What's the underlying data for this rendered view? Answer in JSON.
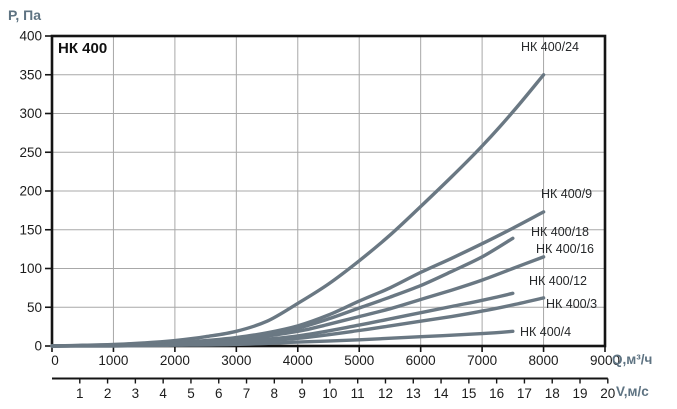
{
  "chart_data": {
    "type": "line",
    "title": "НК 400",
    "y_axis": {
      "label": "Р, Па",
      "min": 0,
      "max": 400,
      "tick_step": 50,
      "ticks": [
        0,
        50,
        100,
        150,
        200,
        250,
        300,
        350,
        400
      ]
    },
    "x_axis_q": {
      "label": "Q,м³/ч",
      "min": 0,
      "max": 9000,
      "tick_step": 1000,
      "ticks": [
        0,
        1000,
        2000,
        3000,
        4000,
        5000,
        6000,
        7000,
        8000,
        9000
      ]
    },
    "x_axis_v": {
      "label": "V,м/с",
      "min": 0,
      "max": 20,
      "ticks": [
        1,
        2,
        3,
        4,
        5,
        6,
        7,
        8,
        9,
        10,
        11,
        12,
        13,
        14,
        15,
        16,
        17,
        18,
        19,
        20
      ]
    },
    "grid": true,
    "legend_position": "inline-right",
    "series": [
      {
        "name": "НК 400/24",
        "label_pos": {
          "x": 521,
          "y": 51
        },
        "points": [
          [
            0,
            0
          ],
          [
            500,
            1
          ],
          [
            1000,
            2
          ],
          [
            1500,
            4
          ],
          [
            2000,
            7
          ],
          [
            2500,
            12
          ],
          [
            3000,
            19
          ],
          [
            3500,
            32
          ],
          [
            4000,
            55
          ],
          [
            4500,
            80
          ],
          [
            5000,
            110
          ],
          [
            5500,
            143
          ],
          [
            6000,
            180
          ],
          [
            6500,
            218
          ],
          [
            7000,
            258
          ],
          [
            7500,
            302
          ],
          [
            8000,
            350
          ]
        ]
      },
      {
        "name": "НК 400/9",
        "label_pos": {
          "x": 541,
          "y": 198
        },
        "points": [
          [
            0,
            0
          ],
          [
            1000,
            1
          ],
          [
            2000,
            4
          ],
          [
            2500,
            7
          ],
          [
            3000,
            11
          ],
          [
            3500,
            17
          ],
          [
            4000,
            26
          ],
          [
            4500,
            40
          ],
          [
            5000,
            58
          ],
          [
            5500,
            75
          ],
          [
            6000,
            95
          ],
          [
            6500,
            113
          ],
          [
            7000,
            132
          ],
          [
            7500,
            152
          ],
          [
            8000,
            173
          ]
        ]
      },
      {
        "name": "НК 400/18",
        "label_pos": {
          "x": 531,
          "y": 236
        },
        "points": [
          [
            0,
            0
          ],
          [
            1000,
            1
          ],
          [
            2000,
            4
          ],
          [
            3000,
            10
          ],
          [
            3500,
            15
          ],
          [
            4000,
            23
          ],
          [
            4500,
            35
          ],
          [
            5000,
            49
          ],
          [
            5500,
            63
          ],
          [
            6000,
            78
          ],
          [
            6500,
            96
          ],
          [
            7000,
            115
          ],
          [
            7500,
            139
          ]
        ]
      },
      {
        "name": "НК 400/16",
        "label_pos": {
          "x": 536,
          "y": 253
        },
        "points": [
          [
            0,
            0
          ],
          [
            1000,
            1
          ],
          [
            2000,
            3
          ],
          [
            3000,
            8
          ],
          [
            4000,
            19
          ],
          [
            4500,
            28
          ],
          [
            5000,
            38
          ],
          [
            5500,
            48
          ],
          [
            6000,
            60
          ],
          [
            6500,
            72
          ],
          [
            7000,
            85
          ],
          [
            7500,
            100
          ],
          [
            8000,
            115
          ]
        ]
      },
      {
        "name": "НК 400/12",
        "label_pos": {
          "x": 529,
          "y": 285
        },
        "points": [
          [
            0,
            0
          ],
          [
            1000,
            1
          ],
          [
            2000,
            3
          ],
          [
            3000,
            6
          ],
          [
            4000,
            13
          ],
          [
            5000,
            27
          ],
          [
            5500,
            35
          ],
          [
            6000,
            43
          ],
          [
            6500,
            51
          ],
          [
            7000,
            59
          ],
          [
            7500,
            68
          ]
        ]
      },
      {
        "name": "НК 400/3",
        "label_pos": {
          "x": 546,
          "y": 308
        },
        "points": [
          [
            0,
            0
          ],
          [
            1000,
            1
          ],
          [
            2000,
            2
          ],
          [
            3000,
            5
          ],
          [
            4000,
            10
          ],
          [
            5000,
            20
          ],
          [
            5500,
            26
          ],
          [
            6000,
            32
          ],
          [
            6500,
            38
          ],
          [
            7000,
            45
          ],
          [
            7500,
            53
          ],
          [
            8000,
            62
          ]
        ]
      },
      {
        "name": "НК 400/4",
        "label_pos": {
          "x": 520,
          "y": 336
        },
        "points": [
          [
            0,
            0
          ],
          [
            1000,
            0
          ],
          [
            2000,
            1
          ],
          [
            3000,
            2
          ],
          [
            4000,
            5
          ],
          [
            5000,
            8
          ],
          [
            6000,
            12
          ],
          [
            7000,
            16
          ],
          [
            7500,
            19
          ]
        ]
      }
    ],
    "colors": {
      "curve": "#6a7883",
      "grid": "#a8a8a8",
      "frame": "#141414",
      "axis_unit_label": "#5e7382",
      "tick_text": "#1c1c1c",
      "series_label_text": "#26282a",
      "background": "#ffffff"
    }
  }
}
